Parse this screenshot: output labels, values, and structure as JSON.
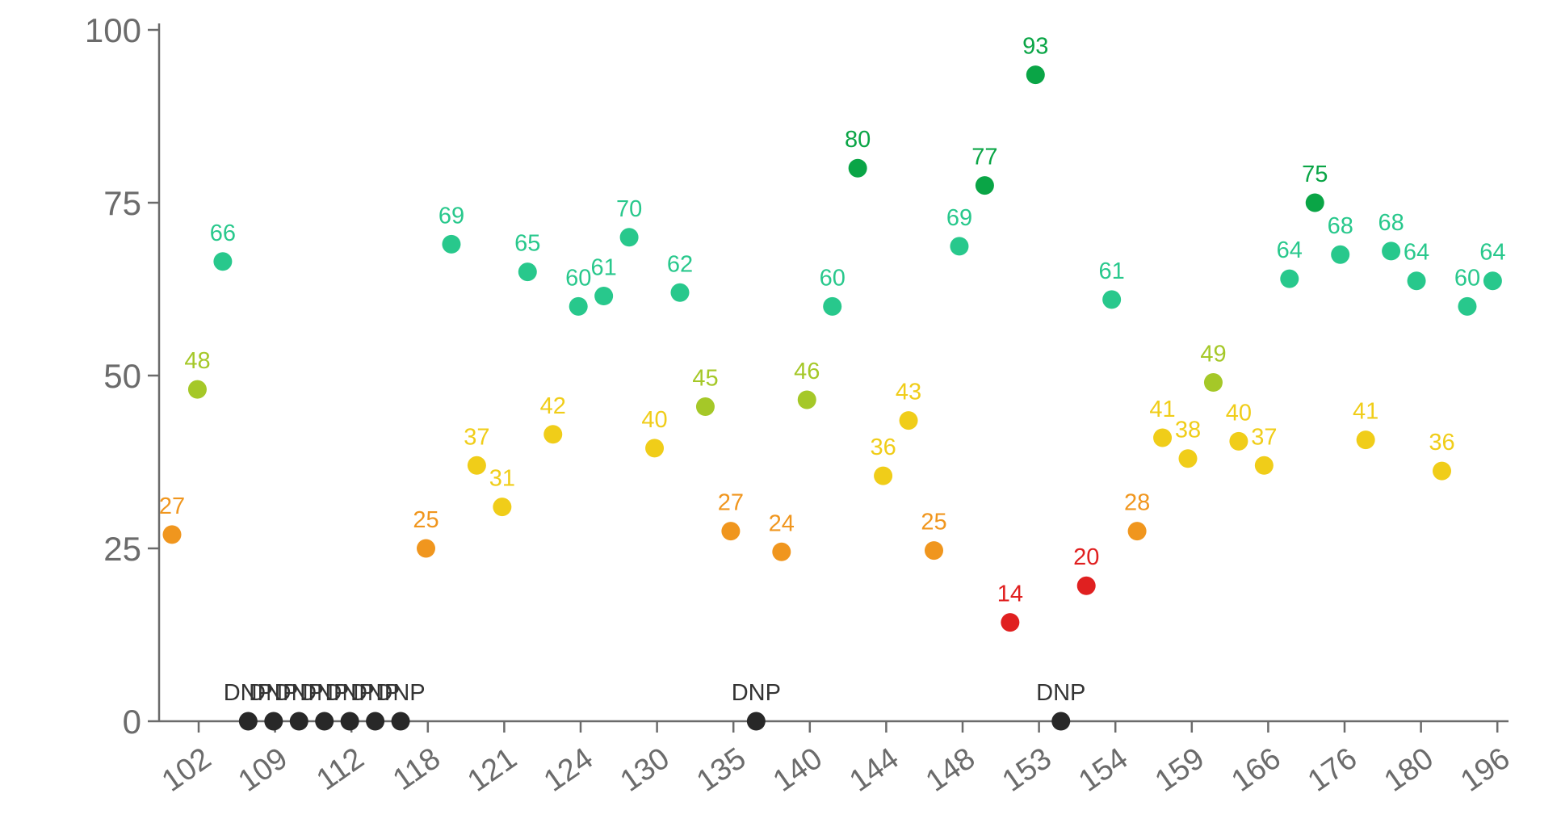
{
  "chart_data": {
    "type": "scatter",
    "title": "",
    "xlabel": "",
    "ylabel": "",
    "ylim": [
      0,
      100
    ],
    "yticks": [
      0,
      25,
      50,
      75,
      100
    ],
    "x_tick_labels": [
      "102",
      "109",
      "112",
      "118",
      "121",
      "124",
      "130",
      "135",
      "140",
      "144",
      "148",
      "153",
      "154",
      "159",
      "166",
      "176",
      "180",
      "196"
    ],
    "missing_label": "DNP",
    "colors": {
      "red": "#e02020",
      "orange": "#f0961e",
      "yellow": "#f0cd19",
      "yellow_green": "#a5c828",
      "teal_green": "#28c88c",
      "green": "#0aa546",
      "dnp": "#282828"
    },
    "points": [
      {
        "label": "27",
        "value": 27
      },
      {
        "label": "48",
        "value": 48
      },
      {
        "label": "66",
        "value": 66.5
      },
      {
        "label": "DNP",
        "value": null
      },
      {
        "label": "DNP",
        "value": null
      },
      {
        "label": "DNP",
        "value": null
      },
      {
        "label": "DNP",
        "value": null
      },
      {
        "label": "DNP",
        "value": null
      },
      {
        "label": "DNP",
        "value": null
      },
      {
        "label": "DNP",
        "value": null
      },
      {
        "label": "25",
        "value": 25
      },
      {
        "label": "69",
        "value": 69
      },
      {
        "label": "37",
        "value": 37
      },
      {
        "label": "31",
        "value": 31
      },
      {
        "label": "65",
        "value": 65
      },
      {
        "label": "42",
        "value": 41.5
      },
      {
        "label": "60",
        "value": 60
      },
      {
        "label": "61",
        "value": 61.5
      },
      {
        "label": "70",
        "value": 70
      },
      {
        "label": "40",
        "value": 39.5
      },
      {
        "label": "62",
        "value": 62
      },
      {
        "label": "45",
        "value": 45.5
      },
      {
        "label": "27",
        "value": 27.5
      },
      {
        "label": "DNP",
        "value": null
      },
      {
        "label": "24",
        "value": 24.5
      },
      {
        "label": "46",
        "value": 46.5
      },
      {
        "label": "60",
        "value": 60
      },
      {
        "label": "80",
        "value": 80
      },
      {
        "label": "36",
        "value": 35.5
      },
      {
        "label": "43",
        "value": 43.5
      },
      {
        "label": "25",
        "value": 24.7
      },
      {
        "label": "69",
        "value": 68.7
      },
      {
        "label": "77",
        "value": 77.5
      },
      {
        "label": "14",
        "value": 14.3
      },
      {
        "label": "93",
        "value": 93.5
      },
      {
        "label": "DNP",
        "value": null
      },
      {
        "label": "20",
        "value": 19.6
      },
      {
        "label": "61",
        "value": 61
      },
      {
        "label": "28",
        "value": 27.5
      },
      {
        "label": "41",
        "value": 41
      },
      {
        "label": "38",
        "value": 38
      },
      {
        "label": "49",
        "value": 49
      },
      {
        "label": "40",
        "value": 40.5
      },
      {
        "label": "37",
        "value": 37
      },
      {
        "label": "64",
        "value": 64
      },
      {
        "label": "75",
        "value": 75
      },
      {
        "label": "68",
        "value": 67.5
      },
      {
        "label": "41",
        "value": 40.7
      },
      {
        "label": "68",
        "value": 68
      },
      {
        "label": "64",
        "value": 63.7
      },
      {
        "label": "36",
        "value": 36.2
      },
      {
        "label": "60",
        "value": 60
      },
      {
        "label": "64",
        "value": 63.7
      }
    ]
  }
}
